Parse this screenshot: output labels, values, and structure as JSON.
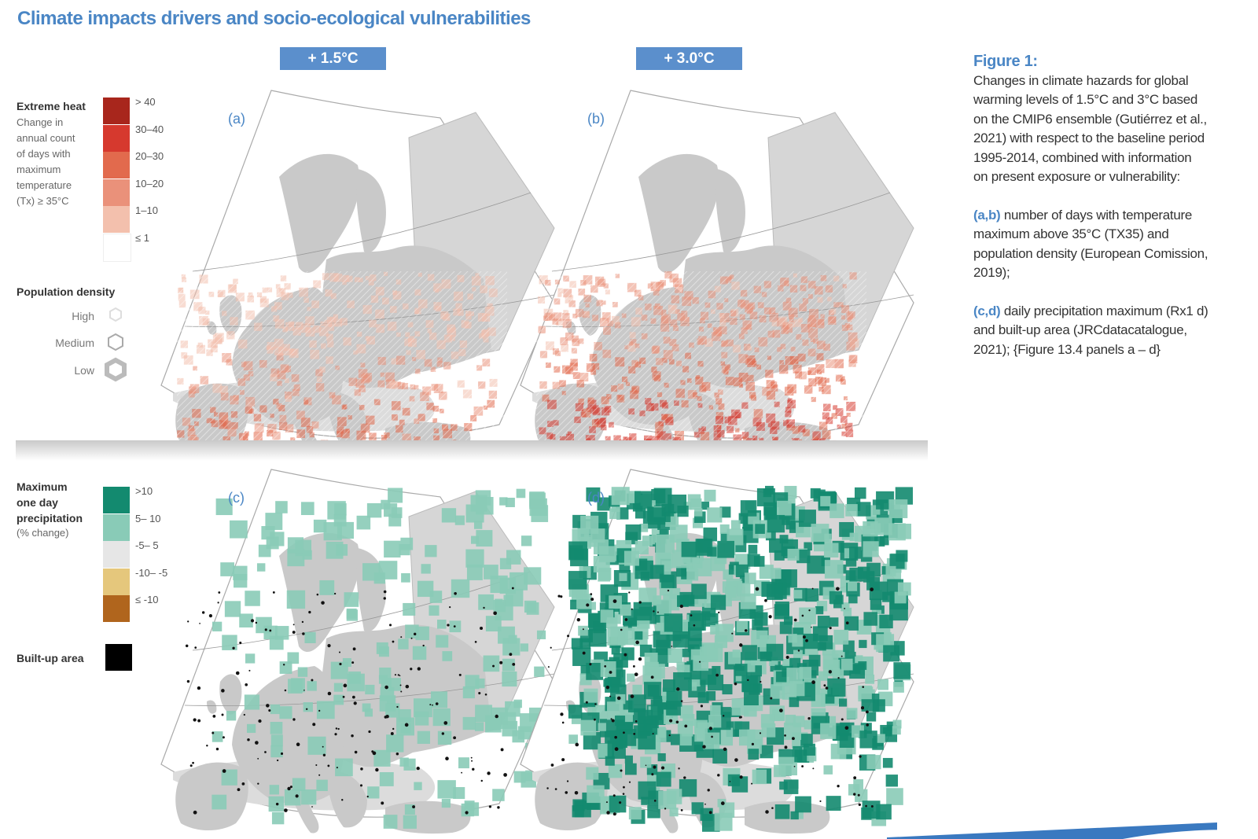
{
  "title": "Climate impacts drivers and socio-ecological vulnerabilities",
  "scenarios": [
    "+ 1.5°C",
    "+ 3.0°C"
  ],
  "panels": [
    {
      "label": "(a)",
      "variable": "heat",
      "scenario": "+ 1.5°C"
    },
    {
      "label": "(b)",
      "variable": "heat",
      "scenario": "+ 3.0°C"
    },
    {
      "label": "(c)",
      "variable": "precip",
      "scenario": "+ 1.5°C"
    },
    {
      "label": "(d)",
      "variable": "precip",
      "scenario": "+ 3.0°C"
    }
  ],
  "heat_legend": {
    "title": "Extreme heat",
    "subtitle": [
      "Change in",
      "annual count",
      "of days with",
      "maximum",
      "temperature",
      "(Tx) ≥ 35°C"
    ],
    "bins": [
      {
        "label": "> 40",
        "color": "#a8261c"
      },
      {
        "label": "30–40",
        "color": "#d6392e"
      },
      {
        "label": "20–30",
        "color": "#e26a4d"
      },
      {
        "label": "10–20",
        "color": "#ea917a"
      },
      {
        "label": "1–10",
        "color": "#f3c0ad"
      },
      {
        "label": "≤ 1",
        "color": "#ffffff"
      }
    ]
  },
  "population_legend": {
    "title": "Population density",
    "levels": [
      "High",
      "Medium",
      "Low"
    ]
  },
  "precip_legend": {
    "title": [
      "Maximum",
      "one day",
      "precipitation"
    ],
    "subtitle": "(% change)",
    "bins": [
      {
        "label": ">10",
        "color": "#138a6f"
      },
      {
        "label": "5– 10",
        "color": "#89cbb7"
      },
      {
        "label": "-5– 5",
        "color": "#e6e6e6"
      },
      {
        "label": "-10– -5",
        "color": "#e5c77c"
      },
      {
        "label": "≤ -10",
        "color": "#b0651d"
      }
    ]
  },
  "builtup_legend": {
    "label": "Built-up area",
    "color": "#000000"
  },
  "caption": {
    "heading": "Figure 1:",
    "intro": "Changes in climate hazards for global warming levels of 1.5°C and 3°C based on the CMIP6 ensemble (Gutiérrez et al., 2021) with respect to the baseline period 1995-2014, combined with information on present exposure or vulnerability:",
    "ab_key": "(a,b)",
    "ab_text": " number of days with temperature maximum above 35°C (TX35) and population density (European Comission, 2019);",
    "cd_key": "(c,d)",
    "cd_text": " daily precipitation maximum (Rx1 d) and built-up area (JRCdatacatalogue, 2021); {Figure 13.4 panels a – d}"
  },
  "colors": {
    "land": "#c9c9c9",
    "frame": "#aaaaaa",
    "accent": "#4a86c5"
  }
}
